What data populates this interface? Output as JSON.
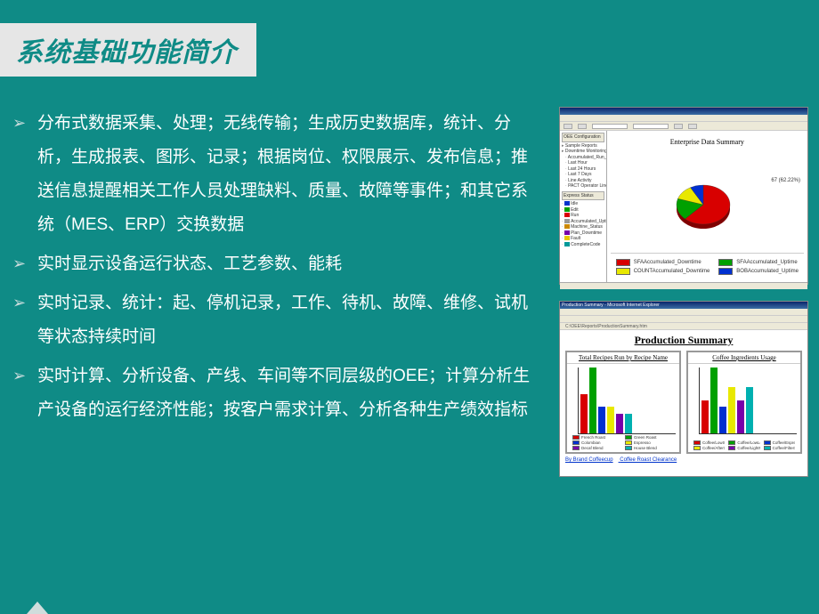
{
  "slide": {
    "background_color": "#0f8b86",
    "title": {
      "text": "系统基础功能简介",
      "bg": "#e6e6e6",
      "color": "#0f8b86",
      "fontsize": 30
    },
    "bullets": [
      "分布式数据采集、处理；无线传输；生成历史数据库，统计、分析，生成报表、图形、记录；根据岗位、权限展示、发布信息；推送信息提醒相关工作人员处理缺料、质量、故障等事件；和其它系统（MES、ERP）交换数据",
      "实时显示设备运行状态、工艺参数、能耗",
      "实时记录、统计：起、停机记录，工作、待机、故障、维修、试机等状态持续时间",
      "实时计算、分析设备、产线、车间等不同层级的OEE；计算分析生产设备的运行经济性能；按客户需求计算、分析各种生产绩效指标"
    ],
    "bullet_marker_color": "#c8dcdc",
    "bullet_text_color": "#ffffff",
    "bullet_fontsize": 19
  },
  "screenshot1": {
    "window_title": "Enterprise Data Summary",
    "chart_title": "Enterprise Data Summary",
    "chart_title_fontsize": 8,
    "pie": {
      "type": "pie",
      "slices": [
        {
          "label": "SFAAccumulated_Downtime",
          "value": 62,
          "color": "#d80000"
        },
        {
          "label": "SFAAccumulated_Uptime",
          "value": 18,
          "color": "#00a000"
        },
        {
          "label": "COUNTAccumulated_Downtime",
          "value": 12,
          "color": "#e8e800"
        },
        {
          "label": "BOBAccumulated_Uptime",
          "value": 8,
          "color": "#0030d0"
        }
      ],
      "callout": {
        "text": "67 (62.22%)",
        "position": "right"
      }
    },
    "tree_top": [
      "OEE Configuration",
      "Sample Reports",
      "Downtime Monitoring",
      "Accumulated_Run_Time",
      "Last Hour",
      "Last 24 Hours",
      "Last 7 Days",
      "Line Activity",
      "PACT Operator Line Activity"
    ],
    "tree_status_header": "Express Status",
    "tree_status": [
      {
        "label": "Idle",
        "color": "#0033cc"
      },
      {
        "label": "Edit",
        "color": "#00a000"
      },
      {
        "label": "Run",
        "color": "#d80000"
      },
      {
        "label": "Accumulated_Uptime",
        "color": "#999999"
      },
      {
        "label": "Machine_Status",
        "color": "#cc8800"
      },
      {
        "label": "Plan_Downtime",
        "color": "#7700aa"
      },
      {
        "label": "Fault",
        "color": "#e8c800"
      },
      {
        "label": "CompleteCode",
        "color": "#009999"
      }
    ]
  },
  "screenshot2": {
    "window_title": "Production Summary - Microsoft Internet Explorer",
    "address_bar": "C:\\OEE\\Reports\\ProductionSummary.htm",
    "title": "Production Summary",
    "title_fontsize": 12,
    "panel1": {
      "title": "Total Recipes Run by Recipe Name",
      "type": "bar",
      "ymax": 10,
      "bars": [
        {
          "label": "French Roast",
          "value": 6,
          "color": "#d80000"
        },
        {
          "label": "Green Roast",
          "value": 10,
          "color": "#00a000"
        },
        {
          "label": "Colombian",
          "value": 4,
          "color": "#0030d0"
        },
        {
          "label": "Espresso",
          "value": 4,
          "color": "#e8e800"
        },
        {
          "label": "Decaf Blend",
          "value": 3,
          "color": "#7700aa"
        },
        {
          "label": "House Blend",
          "value": 3,
          "color": "#00b0b0"
        }
      ]
    },
    "panel2": {
      "title": "Coffee Ingredients  Usage",
      "type": "bar",
      "ymax": 10,
      "bars": [
        {
          "label": "Coffee/LowStrength",
          "value": 5,
          "color": "#d80000"
        },
        {
          "label": "Coffee/LowLength",
          "value": 10,
          "color": "#00a000"
        },
        {
          "label": "Coffee/EspressoLength",
          "value": 4,
          "color": "#0030d0"
        },
        {
          "label": "Coffee/AfterStrength",
          "value": 7,
          "color": "#e8e800"
        },
        {
          "label": "Coffee/LightRoast",
          "value": 5,
          "color": "#7700aa"
        },
        {
          "label": "Coffee/FilterStrength",
          "value": 7,
          "color": "#00b0b0"
        }
      ]
    },
    "links": [
      "By Brand Coffeecup",
      "Coffee Roast Clearance"
    ]
  }
}
